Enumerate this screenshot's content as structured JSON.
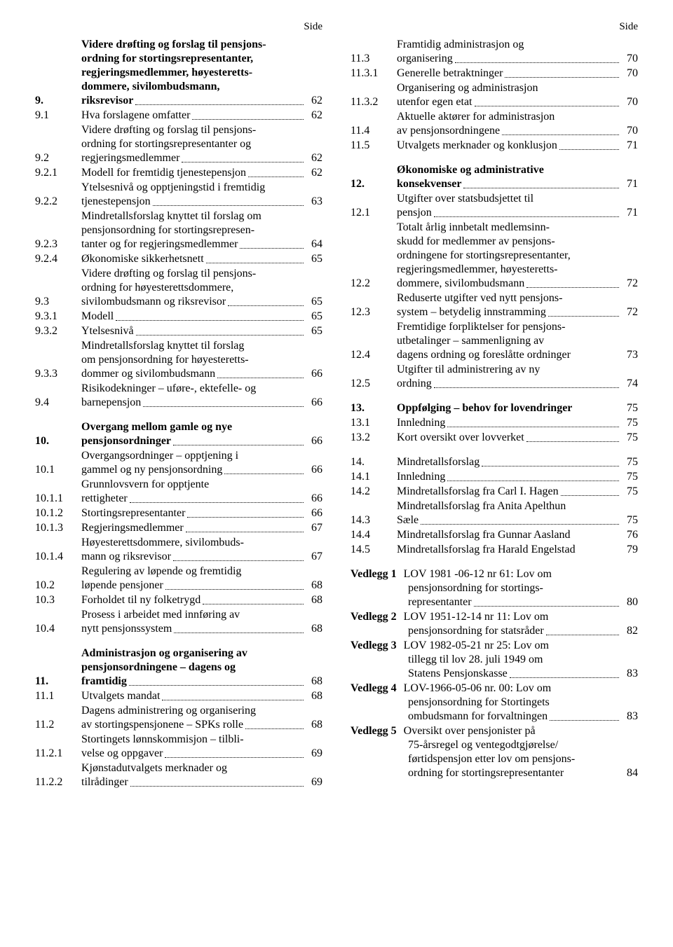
{
  "header": {
    "side": "Side"
  },
  "left": [
    {
      "type": "entry",
      "num": "9.",
      "bold": true,
      "lines": [
        "Videre drøfting og forslag til pensjons-",
        "ordning for stortingsrepresentanter,",
        "regjeringsmedlemmer, høyesteretts-",
        "dommere, sivilombudsmann,"
      ],
      "last": "riksrevisor",
      "page": "62"
    },
    {
      "type": "entry",
      "num": "9.1",
      "lines": [],
      "last": "Hva forslagene omfatter",
      "page": "62"
    },
    {
      "type": "entry",
      "num": "9.2",
      "lines": [
        "Videre drøfting og forslag til pensjons-",
        "ordning for stortingsrepresentanter og"
      ],
      "last": "regjeringsmedlemmer",
      "page": "62"
    },
    {
      "type": "entry",
      "num": "9.2.1",
      "lines": [],
      "last": "Modell for fremtidig tjenestepensjon",
      "page": "62"
    },
    {
      "type": "entry",
      "num": "9.2.2",
      "lines": [
        "Ytelsesnivå og opptjeningstid i fremtidig"
      ],
      "last": "tjenestepensjon",
      "page": "63"
    },
    {
      "type": "entry",
      "num": "9.2.3",
      "lines": [
        "Mindretallsforslag knyttet til forslag om",
        "pensjonsordning for stortingsrepresen-"
      ],
      "last": "tanter og for regjeringsmedlemmer",
      "page": "64"
    },
    {
      "type": "entry",
      "num": "9.2.4",
      "lines": [],
      "last": "Økonomiske sikkerhetsnett",
      "page": "65"
    },
    {
      "type": "entry",
      "num": "9.3",
      "lines": [
        "Videre drøfting og forslag til pensjons-",
        "ordning for høyesterettsdommere,"
      ],
      "last": "sivilombudsmann og riksrevisor",
      "page": "65"
    },
    {
      "type": "entry",
      "num": "9.3.1",
      "lines": [],
      "last": "Modell",
      "page": "65"
    },
    {
      "type": "entry",
      "num": "9.3.2",
      "lines": [],
      "last": "Ytelsesnivå",
      "page": "65"
    },
    {
      "type": "entry",
      "num": "9.3.3",
      "lines": [
        "Mindretallsforslag knyttet til forslag",
        "om pensjonsordning for høyesteretts-"
      ],
      "last": "dommer og sivilombudsmann",
      "page": "66"
    },
    {
      "type": "entry",
      "num": "9.4",
      "lines": [
        "Risikodekninger – uføre-, ektefelle- og"
      ],
      "last": "barnepensjon",
      "page": "66"
    },
    {
      "type": "spacer"
    },
    {
      "type": "entry",
      "num": "10.",
      "bold": true,
      "lines": [
        "Overgang mellom gamle og nye"
      ],
      "last": "pensjonsordninger",
      "page": "66"
    },
    {
      "type": "entry",
      "num": "10.1",
      "lines": [
        "Overgangsordninger – opptjening i"
      ],
      "last": "gammel og ny pensjonsordning",
      "page": "66"
    },
    {
      "type": "entry",
      "num": "10.1.1",
      "lines": [
        "Grunnlovsvern for opptjente"
      ],
      "last": "rettigheter",
      "page": "66"
    },
    {
      "type": "entry",
      "num": "10.1.2",
      "lines": [],
      "last": "Stortingsrepresentanter",
      "page": "66"
    },
    {
      "type": "entry",
      "num": "10.1.3",
      "lines": [],
      "last": "Regjeringsmedlemmer",
      "page": "67"
    },
    {
      "type": "entry",
      "num": "10.1.4",
      "lines": [
        "Høyesterettsdommere, sivilombuds-"
      ],
      "last": "mann og riksrevisor",
      "page": "67"
    },
    {
      "type": "entry",
      "num": "10.2",
      "lines": [
        "Regulering av løpende og fremtidig"
      ],
      "last": "løpende pensjoner",
      "page": "68"
    },
    {
      "type": "entry",
      "num": "10.3",
      "lines": [],
      "last": "Forholdet til ny folketrygd",
      "page": "68"
    },
    {
      "type": "entry",
      "num": "10.4",
      "lines": [
        "Prosess i arbeidet med innføring av"
      ],
      "last": "nytt pensjonssystem",
      "page": "68"
    },
    {
      "type": "spacer"
    },
    {
      "type": "entry",
      "num": "11.",
      "bold": true,
      "lines": [
        "Administrasjon og organisering av",
        "pensjonsordningene – dagens og"
      ],
      "last": "framtidig",
      "page": "68"
    },
    {
      "type": "entry",
      "num": "11.1",
      "lines": [],
      "last": "Utvalgets mandat",
      "page": "68"
    },
    {
      "type": "entry",
      "num": "11.2",
      "lines": [
        "Dagens administrering og organisering"
      ],
      "last": "av stortingspensjonene – SPKs rolle",
      "page": "68"
    },
    {
      "type": "entry",
      "num": "11.2.1",
      "lines": [
        "Stortingets lønnskommisjon – tilbli-"
      ],
      "last": "velse og oppgaver",
      "page": "69"
    },
    {
      "type": "entry",
      "num": "11.2.2",
      "lines": [
        "Kjønstadutvalgets merknader og"
      ],
      "last": "tilrådinger",
      "page": "69"
    }
  ],
  "right": [
    {
      "type": "entry",
      "num": "11.3",
      "lines": [
        "Framtidig administrasjon og"
      ],
      "last": "organisering",
      "page": "70"
    },
    {
      "type": "entry",
      "num": "11.3.1",
      "lines": [],
      "last": "Generelle betraktninger",
      "page": "70"
    },
    {
      "type": "entry",
      "num": "11.3.2",
      "lines": [
        "Organisering og administrasjon"
      ],
      "last": "utenfor egen etat",
      "page": "70"
    },
    {
      "type": "entry",
      "num": "11.4",
      "lines": [
        "Aktuelle aktører for administrasjon"
      ],
      "last": "av pensjonsordningene",
      "page": "70"
    },
    {
      "type": "entry",
      "num": "11.5",
      "lines": [],
      "last": "Utvalgets merknader og konklusjon",
      "page": "71"
    },
    {
      "type": "spacer"
    },
    {
      "type": "entry",
      "num": "12.",
      "bold": true,
      "lines": [
        "Økonomiske og administrative"
      ],
      "last": "konsekvenser",
      "page": "71"
    },
    {
      "type": "entry",
      "num": "12.1",
      "lines": [
        "Utgifter over statsbudsjettet til"
      ],
      "last": "pensjon",
      "page": "71"
    },
    {
      "type": "entry",
      "num": "12.2",
      "lines": [
        "Totalt årlig innbetalt medlemsinn-",
        "skudd for medlemmer av pensjons-",
        "ordningene for stortingsrepresentanter,",
        "regjeringsmedlemmer, høyesteretts-"
      ],
      "last": "dommere, sivilombudsmann",
      "page": "72"
    },
    {
      "type": "entry",
      "num": "12.3",
      "lines": [
        "Reduserte utgifter ved nytt pensjons-"
      ],
      "last": "system – betydelig innstramming",
      "page": "72"
    },
    {
      "type": "entry",
      "num": "12.4",
      "lines": [
        "Fremtidige forpliktelser for pensjons-",
        "utbetalinger – sammenligning av"
      ],
      "last": "dagens ordning og foreslåtte ordninger",
      "page": "73",
      "noleader": true
    },
    {
      "type": "entry",
      "num": "12.5",
      "lines": [
        "Utgifter til administrering av ny"
      ],
      "last": "ordning",
      "page": "74"
    },
    {
      "type": "spacer"
    },
    {
      "type": "entry",
      "num": "13.",
      "bold": true,
      "lines": [],
      "last": "Oppfølging – behov for lovendringer",
      "page": "75",
      "noleader": true
    },
    {
      "type": "entry",
      "num": "13.1",
      "lines": [],
      "last": "Innledning",
      "page": "75"
    },
    {
      "type": "entry",
      "num": "13.2",
      "lines": [],
      "last": "Kort oversikt over lovverket",
      "page": "75"
    },
    {
      "type": "spacer"
    },
    {
      "type": "entry",
      "num": "14.",
      "lines": [],
      "last": "Mindretallsforslag",
      "page": "75"
    },
    {
      "type": "entry",
      "num": "14.1",
      "lines": [],
      "last": "Innledning",
      "page": "75"
    },
    {
      "type": "entry",
      "num": "14.2",
      "lines": [],
      "last": "Mindretallsforslag fra Carl I. Hagen",
      "page": "75"
    },
    {
      "type": "entry",
      "num": "14.3",
      "lines": [
        "Mindretallsforslag fra Anita Apelthun"
      ],
      "last": "Sæle",
      "page": "75"
    },
    {
      "type": "entry",
      "num": "14.4",
      "lines": [],
      "last": "Mindretallsforslag fra Gunnar Aasland",
      "page": "76",
      "noleader": true
    },
    {
      "type": "entry",
      "num": "14.5",
      "lines": [],
      "last": "Mindretallsforslag fra Harald Engelstad",
      "page": "79",
      "noleader": true
    },
    {
      "type": "spacer"
    },
    {
      "type": "vedlegg",
      "label": "Vedlegg 1",
      "first": "LOV 1981 -06-12 nr 61: Lov om",
      "cont": [
        "pensjonsordning for stortings-"
      ],
      "last": "representanter",
      "page": "80"
    },
    {
      "type": "vedlegg",
      "label": "Vedlegg 2",
      "first": "LOV 1951-12-14 nr 11: Lov om",
      "cont": [],
      "last": "pensjonsordning for statsråder",
      "page": "82"
    },
    {
      "type": "vedlegg",
      "label": "Vedlegg 3",
      "first": "LOV 1982-05-21 nr 25: Lov om",
      "cont": [
        "tillegg til lov 28. juli 1949 om"
      ],
      "last": "Statens Pensjonskasse",
      "page": "83"
    },
    {
      "type": "vedlegg",
      "label": "Vedlegg 4",
      "first": " LOV-1966-05-06 nr. 00: Lov om",
      "cont": [
        "pensjonsordning for Stortingets"
      ],
      "last": "ombudsmann for forvaltningen",
      "page": "83"
    },
    {
      "type": "vedlegg",
      "label": "Vedlegg 5",
      "first": "Oversikt over pensjonister på",
      "cont": [
        "75-årsregel og ventegodtgjørelse/",
        "førtidspensjon etter lov om pensjons-"
      ],
      "last": "ordning for stortingsrepresentanter",
      "page": "84",
      "noleader": true
    }
  ]
}
